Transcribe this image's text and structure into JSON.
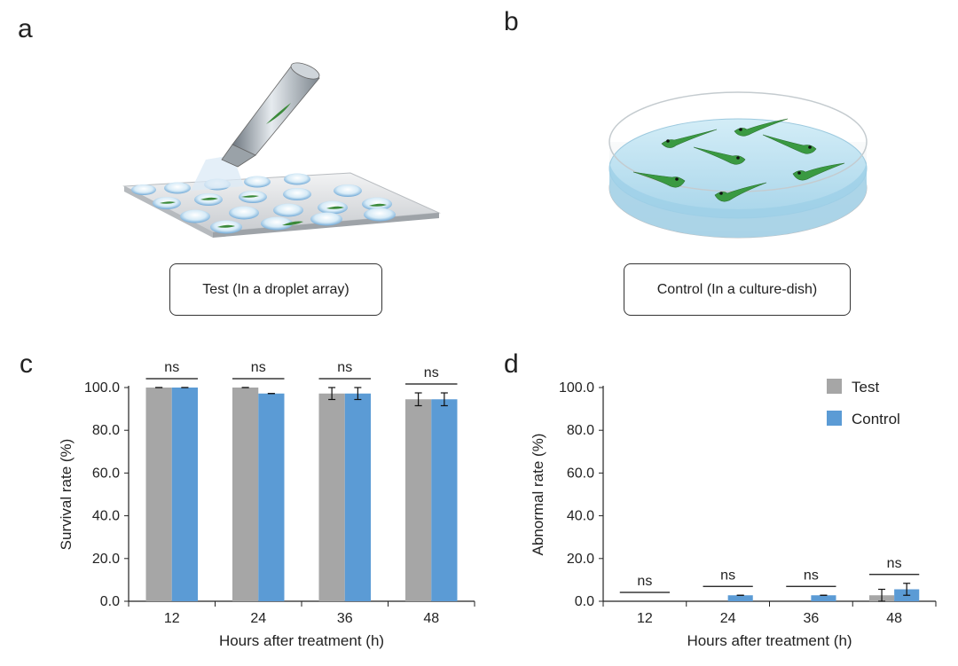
{
  "panels": {
    "a": {
      "letter": "a",
      "caption": "Test (In a droplet array)"
    },
    "b": {
      "letter": "b",
      "caption": "Control (In a culture-dish)"
    },
    "c": {
      "letter": "c"
    },
    "d": {
      "letter": "d"
    }
  },
  "colors": {
    "test": "#a6a6a6",
    "control": "#5b9bd5",
    "axis": "#222222"
  },
  "chart_data": [
    {
      "type": "bar",
      "panel": "c",
      "categories": [
        "12",
        "24",
        "36",
        "48"
      ],
      "xlabel": "Hours after treatment (h)",
      "ylabel": "Survival rate (%)",
      "ylim": [
        0,
        100
      ],
      "yticks": [
        "0.0",
        "20.0",
        "40.0",
        "60.0",
        "80.0",
        "100.0"
      ],
      "series": [
        {
          "name": "Test",
          "values": [
            100,
            100,
            97.2,
            94.5
          ],
          "errors": [
            0,
            0,
            2.8,
            3.0
          ]
        },
        {
          "name": "Control",
          "values": [
            100,
            97.2,
            97.2,
            94.5
          ],
          "errors": [
            0,
            0,
            2.8,
            3.0
          ]
        }
      ],
      "significance": [
        "ns",
        "ns",
        "ns",
        "ns"
      ],
      "legend": "none"
    },
    {
      "type": "bar",
      "panel": "d",
      "categories": [
        "12",
        "24",
        "36",
        "48"
      ],
      "xlabel": "Hours after treatment (h)",
      "ylabel": "Abnormal rate (%)",
      "ylim": [
        0,
        100
      ],
      "yticks": [
        "0.0",
        "20.0",
        "40.0",
        "60.0",
        "80.0",
        "100.0"
      ],
      "series": [
        {
          "name": "Test",
          "values": [
            0,
            0,
            0,
            2.8
          ],
          "errors": [
            0,
            0,
            0,
            2.8
          ]
        },
        {
          "name": "Control",
          "values": [
            0,
            2.8,
            2.8,
            5.6
          ],
          "errors": [
            0,
            0,
            0,
            2.8
          ]
        }
      ],
      "significance": [
        "ns",
        "ns",
        "ns",
        "ns"
      ],
      "legend": "top-right"
    }
  ]
}
